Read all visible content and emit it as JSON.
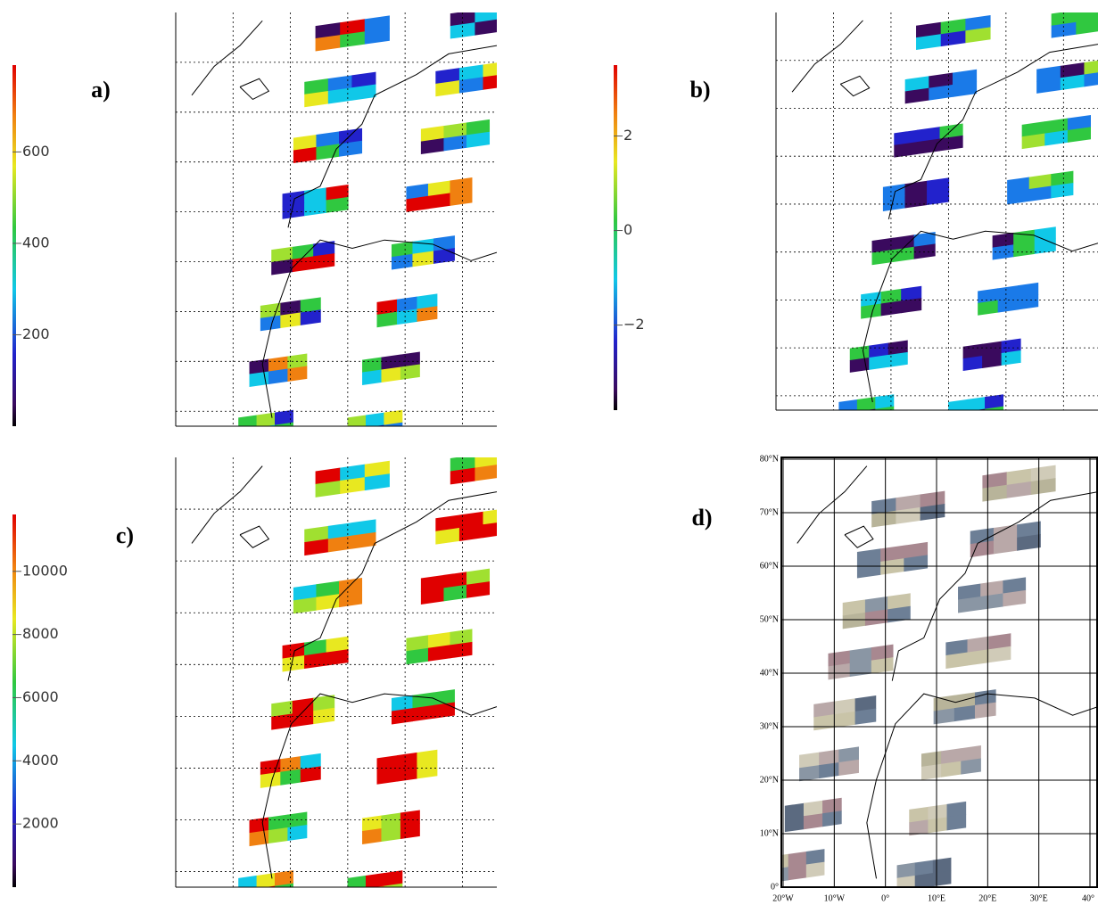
{
  "panels": [
    {
      "label": "a)",
      "colorbar": {
        "lim": [
          0,
          790
        ],
        "ticks": [
          200,
          400,
          600
        ]
      }
    },
    {
      "label": "b)",
      "colorbar": {
        "lim": [
          -3.8,
          3.5
        ],
        "ticks": [
          {
            "value": -2,
            "label": "−2"
          },
          0,
          2
        ]
      }
    },
    {
      "label": "c)",
      "colorbar": {
        "lim": [
          0,
          11800
        ],
        "ticks": [
          2000,
          4000,
          6000,
          8000,
          10000
        ]
      }
    },
    {
      "label": "d)",
      "map": {
        "latlim": [
          0,
          80
        ],
        "lonlim": [
          -20,
          40
        ],
        "latticks": [
          {
            "value": 0,
            "label": "0°"
          },
          {
            "value": 10,
            "label": "10°N"
          },
          {
            "value": 20,
            "label": "20°N"
          },
          {
            "value": 30,
            "label": "30°N"
          },
          {
            "value": 40,
            "label": "40°N"
          },
          {
            "value": 50,
            "label": "50°N"
          },
          {
            "value": 60,
            "label": "60°N"
          },
          {
            "value": 70,
            "label": "70°N"
          },
          {
            "value": 80,
            "label": "80°N"
          }
        ],
        "lonticks": [
          {
            "value": -20,
            "label": "20°W"
          },
          {
            "value": -10,
            "label": "10°W"
          },
          {
            "value": 0,
            "label": "0°"
          },
          {
            "value": 10,
            "label": "10°E"
          },
          {
            "value": 20,
            "label": "20°E"
          },
          {
            "value": 30,
            "label": "30°E"
          },
          {
            "value": 40,
            "label": "40°"
          }
        ]
      }
    }
  ]
}
